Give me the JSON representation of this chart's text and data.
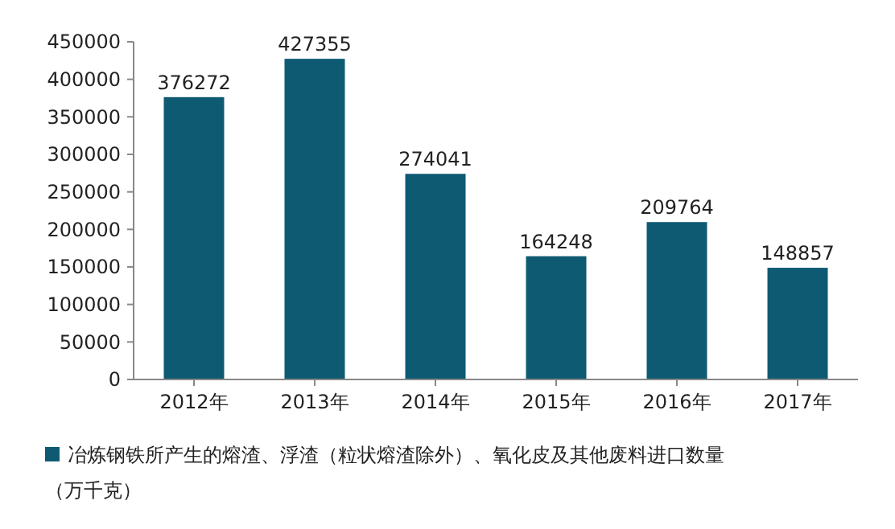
{
  "chart_data": {
    "type": "bar",
    "categories": [
      "2012年",
      "2013年",
      "2014年",
      "2015年",
      "2016年",
      "2017年"
    ],
    "series": [
      {
        "name": "冶炼钢铁所产生的熔渣、浮渣（粒状熔渣除外）、氧化皮及其他废料进口数量（万千克）",
        "color": "#0e5a73",
        "values": [
          376272,
          427355,
          274041,
          164248,
          209764,
          148857
        ]
      }
    ],
    "ylim": [
      0,
      450000
    ],
    "yticks": [
      0,
      50000,
      100000,
      150000,
      200000,
      250000,
      300000,
      350000,
      400000,
      450000
    ],
    "data_labels": true,
    "legend": "bottom",
    "grid": false
  }
}
